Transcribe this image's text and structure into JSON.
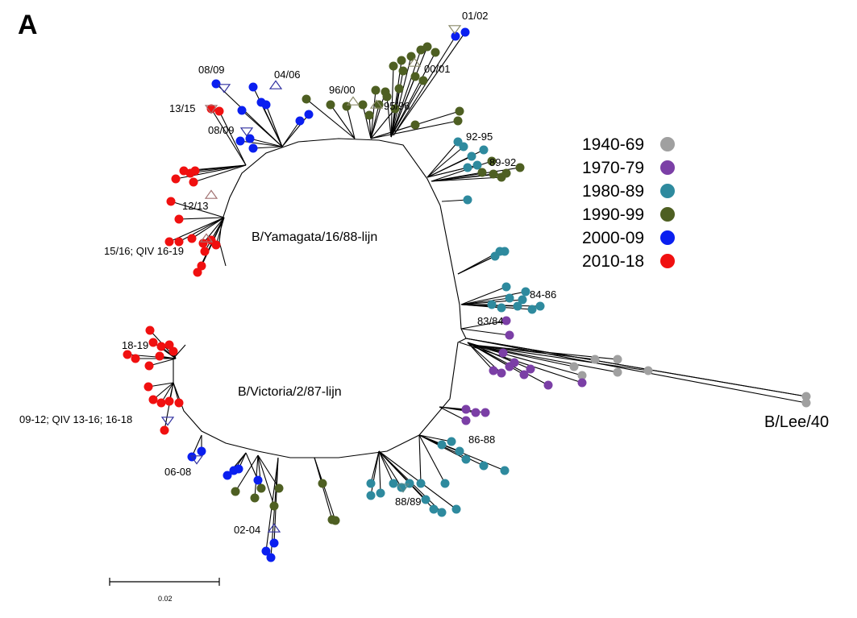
{
  "figure": {
    "panel_label": "A",
    "lineages": {
      "yamagata": "B/Yamagata/16/88-lijn",
      "victoria": "B/Victoria/2/87-lijn"
    },
    "root_label": "B/Lee/40",
    "scale_bar_label": "0.02"
  },
  "legend": [
    {
      "label": "1940-69",
      "color": "#a0a0a0"
    },
    {
      "label": "1970-79",
      "color": "#7b3fa6"
    },
    {
      "label": "1980-89",
      "color": "#2e8a9e"
    },
    {
      "label": "1990-99",
      "color": "#4e5f22"
    },
    {
      "label": "2000-09",
      "color": "#0a1ff0"
    },
    {
      "label": "2010-18",
      "color": "#f01010"
    }
  ],
  "vaccine_labels": [
    "01/02",
    "00/01",
    "96/00",
    "95/96",
    "04/06",
    "08/09",
    "13/15",
    "08/09",
    "12/13",
    "15/16; QIV 16-19",
    "92-95",
    "89-92",
    "84-86",
    "83/84",
    "18-19",
    "09-12; QIV 13-16; 16-18",
    "06-08",
    "02-04",
    "86-88",
    "88/89"
  ]
}
